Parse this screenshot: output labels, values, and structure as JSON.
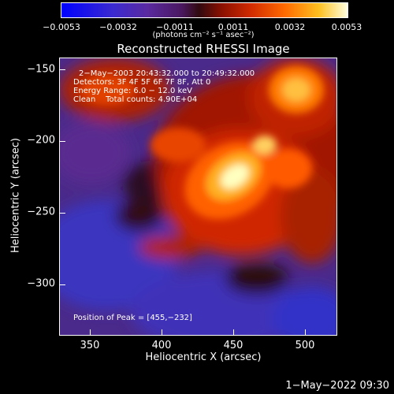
{
  "colorbar": {
    "ticks": [
      "−0.0053",
      "−0.0032",
      "−0.0011",
      "0.0011",
      "0.0032",
      "0.0053"
    ],
    "unit": "(photons cm⁻² s⁻¹ asec⁻²)"
  },
  "title": "Reconstructed RHESSI Image",
  "info": {
    "line1": "2−May−2003 20:43:32.000 to 20:49:32.000",
    "line2": "Detectors: 3F 4F 5F 6F 7F 8F, Att 0",
    "line3": "Energy Range: 6.0 − 12.0 keV",
    "line4": "Clean    Total counts: 4.90E+04",
    "peak": "Position of Peak = [455,−232]"
  },
  "axes": {
    "xlabel": "Heliocentric X (arcsec)",
    "ylabel": "Heliocentric Y (arcsec)",
    "xticks": [
      "350",
      "400",
      "450",
      "500"
    ],
    "yticks": [
      "−150",
      "−200",
      "−250",
      "−300"
    ]
  },
  "timestamp": "1−May−2022 09:30"
}
